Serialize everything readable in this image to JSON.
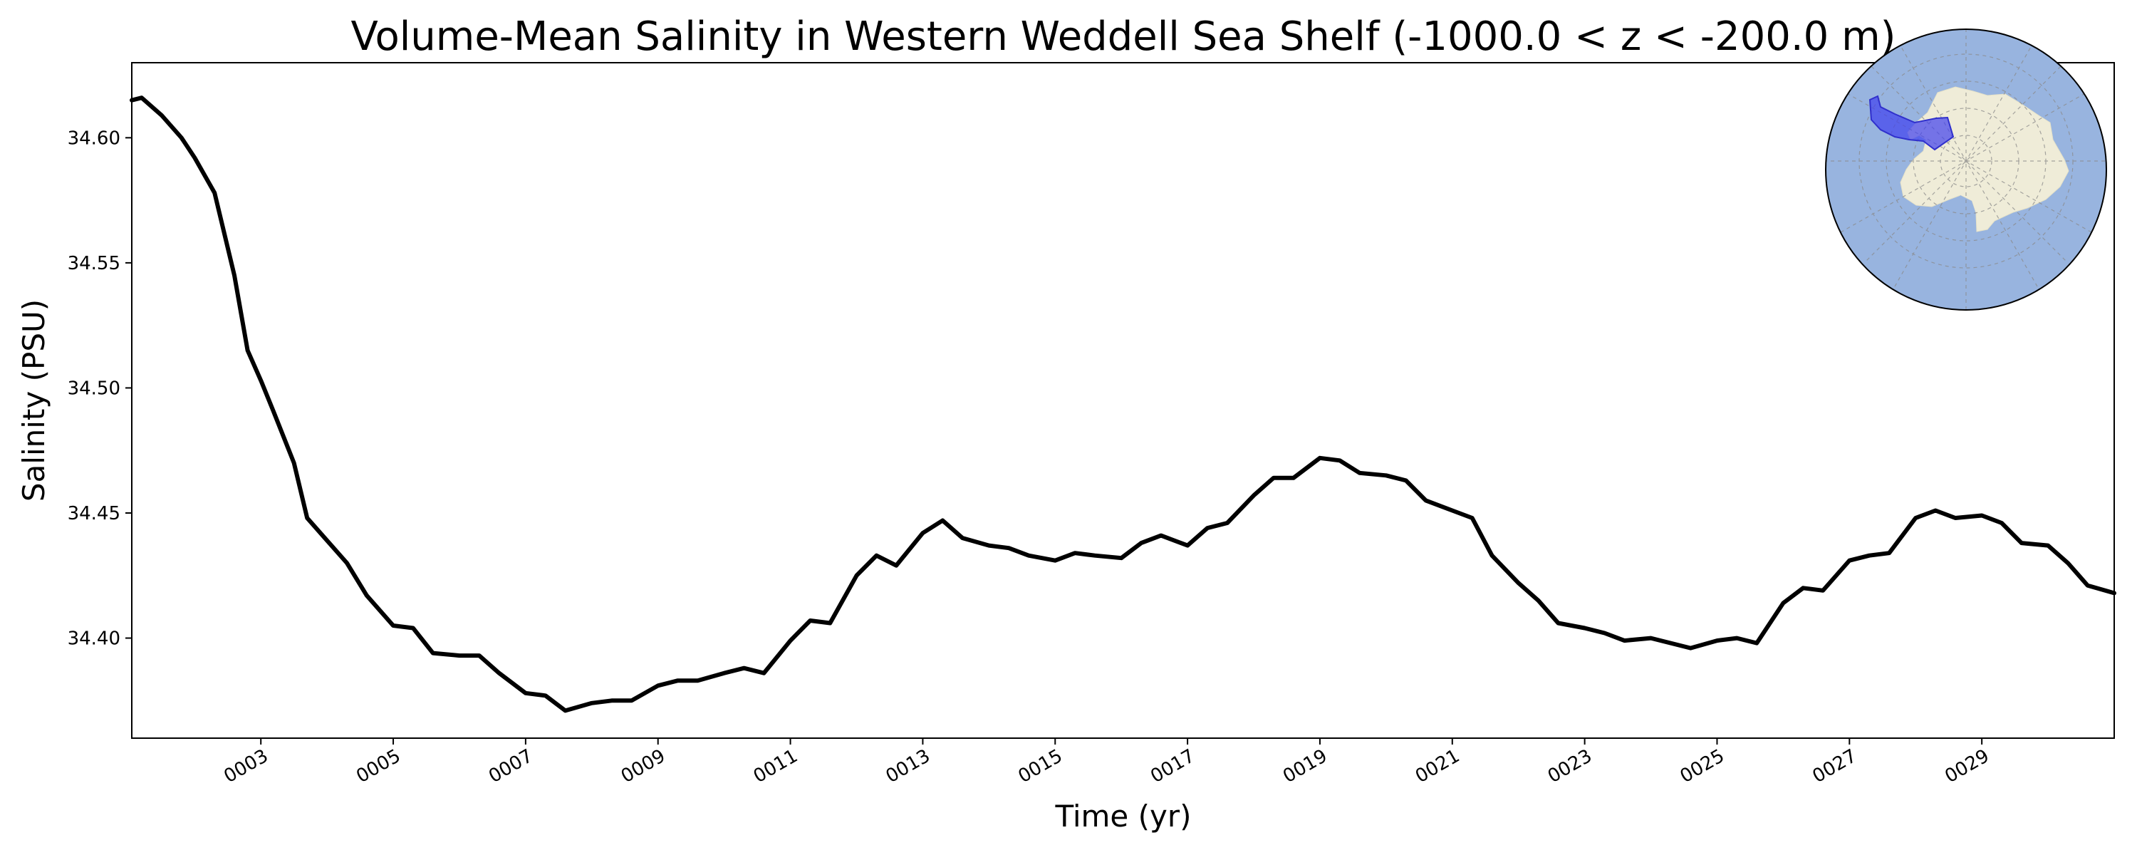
{
  "chart_data": {
    "type": "line",
    "title": "Volume-Mean Salinity in Western Weddell Sea Shelf (-1000.0 < z < -200.0 m)",
    "xlabel": "Time (yr)",
    "ylabel": "Salinity (PSU)",
    "xlim": [
      1.05,
      31.0
    ],
    "ylim": [
      34.36,
      34.63
    ],
    "grid": false,
    "x_tick_values": [
      3,
      5,
      7,
      9,
      11,
      13,
      15,
      17,
      19,
      21,
      23,
      25,
      27,
      29
    ],
    "x_tick_labels": [
      "0003",
      "0005",
      "0007",
      "0009",
      "0011",
      "0013",
      "0015",
      "0017",
      "0019",
      "0021",
      "0023",
      "0025",
      "0027",
      "0029"
    ],
    "y_tick_values": [
      34.4,
      34.45,
      34.5,
      34.55,
      34.6
    ],
    "y_tick_labels": [
      "34.40",
      "34.45",
      "34.50",
      "34.55",
      "34.60"
    ],
    "series": [
      {
        "color": "#000000",
        "x": [
          1.05,
          1.2,
          1.5,
          1.8,
          2.0,
          2.3,
          2.6,
          2.8,
          3.0,
          3.2,
          3.5,
          3.7,
          4.0,
          4.3,
          4.6,
          5.0,
          5.3,
          5.6,
          6.0,
          6.3,
          6.6,
          7.0,
          7.3,
          7.6,
          8.0,
          8.3,
          8.6,
          9.0,
          9.3,
          9.6,
          10.0,
          10.3,
          10.6,
          11.0,
          11.3,
          11.6,
          12.0,
          12.3,
          12.6,
          13.0,
          13.3,
          13.6,
          14.0,
          14.3,
          14.6,
          15.0,
          15.3,
          15.6,
          16.0,
          16.3,
          16.6,
          17.0,
          17.3,
          17.6,
          18.0,
          18.3,
          18.6,
          19.0,
          19.3,
          19.6,
          20.0,
          20.3,
          20.6,
          21.0,
          21.3,
          21.6,
          22.0,
          22.3,
          22.6,
          23.0,
          23.3,
          23.6,
          24.0,
          24.3,
          24.6,
          25.0,
          25.3,
          25.6,
          26.0,
          26.3,
          26.6,
          27.0,
          27.3,
          27.6,
          28.0,
          28.3,
          28.6,
          29.0,
          29.3,
          29.6,
          30.0,
          30.3,
          30.6,
          31.0
        ],
        "y": [
          34.615,
          34.616,
          34.609,
          34.6,
          34.592,
          34.578,
          34.545,
          34.515,
          34.503,
          34.49,
          34.47,
          34.448,
          34.439,
          34.43,
          34.417,
          34.405,
          34.404,
          34.394,
          34.393,
          34.393,
          34.386,
          34.378,
          34.377,
          34.371,
          34.374,
          34.375,
          34.375,
          34.381,
          34.383,
          34.383,
          34.386,
          34.388,
          34.386,
          34.399,
          34.407,
          34.406,
          34.425,
          34.433,
          34.429,
          34.442,
          34.447,
          34.44,
          34.437,
          34.436,
          34.433,
          34.431,
          34.434,
          34.433,
          34.432,
          34.438,
          34.441,
          34.437,
          34.444,
          34.446,
          34.457,
          34.464,
          34.464,
          34.472,
          34.471,
          34.466,
          34.465,
          34.463,
          34.455,
          34.451,
          34.448,
          34.433,
          34.422,
          34.415,
          34.406,
          34.404,
          34.402,
          34.399,
          34.4,
          34.398,
          34.396,
          34.399,
          34.4,
          34.398,
          34.414,
          34.42,
          34.419,
          34.431,
          34.433,
          34.434,
          34.448,
          34.451,
          34.448,
          34.449,
          34.446,
          34.438,
          34.437,
          34.43,
          34.421,
          34.418
        ]
      }
    ],
    "inset_map": {
      "projection": "south-polar stereographic",
      "ocean_color": "#98b4df",
      "land_color": "#efecd8",
      "region_color": "#4040ee",
      "region": "Western Weddell Sea Shelf"
    }
  }
}
